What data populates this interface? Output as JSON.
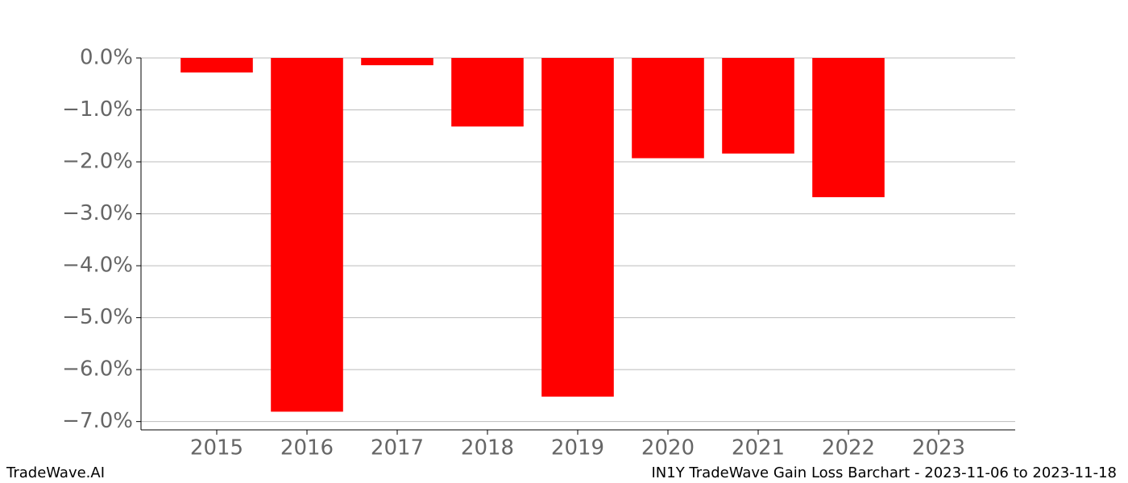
{
  "chart_data": {
    "type": "bar",
    "title": "IN1Y TradeWave Gain Loss Barchart - 2023-11-06 to 2023-11-18",
    "brand": "TradeWave.AI",
    "categories": [
      "2015",
      "2016",
      "2017",
      "2018",
      "2019",
      "2020",
      "2021",
      "2022",
      "2023"
    ],
    "values": [
      -0.28,
      -6.81,
      -0.14,
      -1.32,
      -6.52,
      -1.93,
      -1.84,
      -2.68,
      0
    ],
    "color": "#ff0000",
    "ylim": [
      -7.16,
      0
    ],
    "yticks": [
      {
        "value": 0,
        "label": "0.0%"
      },
      {
        "value": -1,
        "label": "−1.0%"
      },
      {
        "value": -2,
        "label": "−2.0%"
      },
      {
        "value": -3,
        "label": "−3.0%"
      },
      {
        "value": -4,
        "label": "−4.0%"
      },
      {
        "value": -5,
        "label": "−5.0%"
      },
      {
        "value": -6,
        "label": "−6.0%"
      },
      {
        "value": -7,
        "label": "−7.0%"
      }
    ],
    "grid": true
  }
}
